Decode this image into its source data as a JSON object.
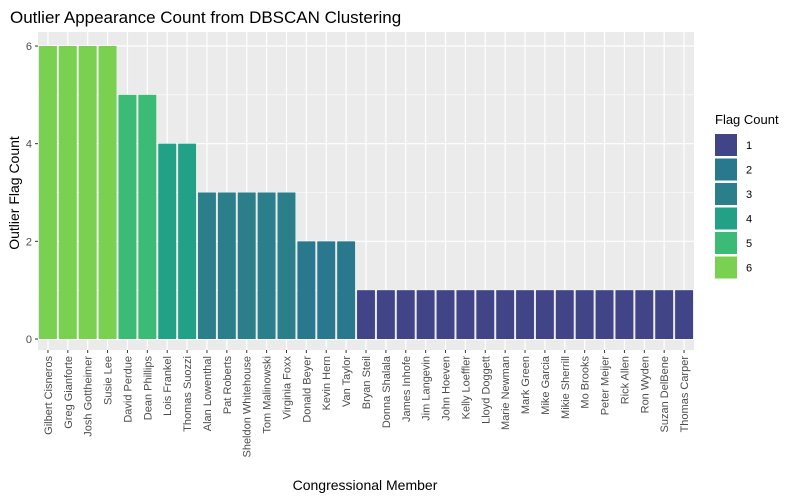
{
  "chart_data": {
    "type": "bar",
    "title": "Outlier Appearance Count from DBSCAN Clustering",
    "xlabel": "Congressional Member",
    "ylabel": "Outlier Flag Count",
    "ylim": [
      0,
      6.3
    ],
    "yticks": [
      "0",
      "2",
      "4",
      "6"
    ],
    "grid": true,
    "legend_placement": "right",
    "legend_title": "Flag Count",
    "legend_entries": [
      "1",
      "2",
      "3",
      "4",
      "5",
      "6"
    ],
    "colors": {
      "1": "#414487",
      "2": "#2a788e",
      "3": "#2b7f8a",
      "4": "#22a186",
      "5": "#3bbb76",
      "6": "#7ad151"
    },
    "categories": [
      "Gilbert Cisneros",
      "Greg Gianforte",
      "Josh Gottheimer",
      "Susie Lee",
      "David Perdue",
      "Dean Phillips",
      "Lois Frankel",
      "Thomas Suozzi",
      "Alan Lowenthal",
      "Pat Roberts",
      "Sheldon Whitehouse",
      "Tom Malinowski",
      "Virginia Foxx",
      "Donald Beyer",
      "Kevin Hern",
      "Van Taylor",
      "Bryan Steil",
      "Donna Shalala",
      "James Inhofe",
      "Jim Langevin",
      "John Hoeven",
      "Kelly Loeffler",
      "Lloyd Doggett",
      "Marie Newman",
      "Mark Green",
      "Mike Garcia",
      "Mikie Sherrill",
      "Mo Brooks",
      "Peter Meijer",
      "Rick Allen",
      "Ron Wyden",
      "Suzan DelBene",
      "Thomas Carper"
    ],
    "values": [
      6,
      6,
      6,
      6,
      5,
      5,
      4,
      4,
      3,
      3,
      3,
      3,
      3,
      2,
      2,
      2,
      1,
      1,
      1,
      1,
      1,
      1,
      1,
      1,
      1,
      1,
      1,
      1,
      1,
      1,
      1,
      1,
      1
    ]
  }
}
